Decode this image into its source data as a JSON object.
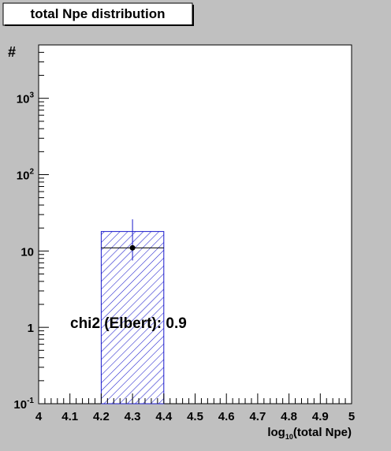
{
  "chart_data": {
    "type": "bar",
    "title": "total Npe distribution",
    "xlabel": "log",
    "xlabel_sub": "10",
    "xlabel_rest": "(total Npe)",
    "ylabel": "#",
    "xlim": [
      4,
      5
    ],
    "ylim": [
      0.1,
      5000
    ],
    "yscale": "log",
    "x_ticks": [
      "4",
      "4.1",
      "4.2",
      "4.3",
      "4.4",
      "4.5",
      "4.6",
      "4.7",
      "4.8",
      "4.9",
      "5"
    ],
    "y_ticks": [
      {
        "value": 0.1,
        "base": "10",
        "exp": "-1"
      },
      {
        "value": 1,
        "base": "1",
        "exp": ""
      },
      {
        "value": 10,
        "base": "10",
        "exp": ""
      },
      {
        "value": 100,
        "base": "10",
        "exp": "2"
      },
      {
        "value": 1000,
        "base": "10",
        "exp": "3"
      }
    ],
    "bars": [
      {
        "x0": 4.2,
        "x1": 4.4,
        "value": 18
      }
    ],
    "points": [
      {
        "x": 4.3,
        "y": 11,
        "xerr": 0.1,
        "yerr_low": 3.5,
        "yerr_high": 15
      }
    ],
    "annotation": "chi2 (Elbert): 0.9",
    "grid": false,
    "colors": {
      "canvas": "#c0c0c0",
      "frame": "#ffffff",
      "bar": "#1a1acc",
      "point": "#000000"
    }
  }
}
